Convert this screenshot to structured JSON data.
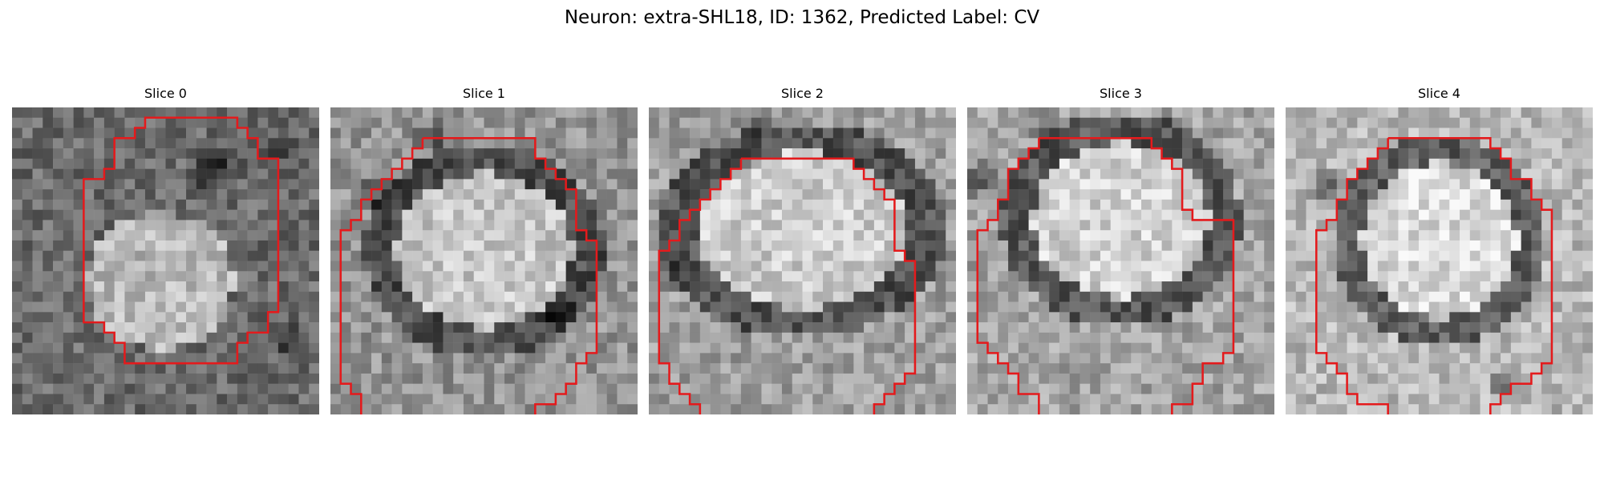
{
  "figure": {
    "title": "Neuron: extra-SHL18, ID: 1362, Predicted Label: CV"
  },
  "panels": [
    {
      "title": "Slice 0"
    },
    {
      "title": "Slice 1"
    },
    {
      "title": "Slice 2"
    },
    {
      "title": "Slice 3"
    },
    {
      "title": "Slice 4"
    }
  ],
  "contour_color": "#e41a1c"
}
